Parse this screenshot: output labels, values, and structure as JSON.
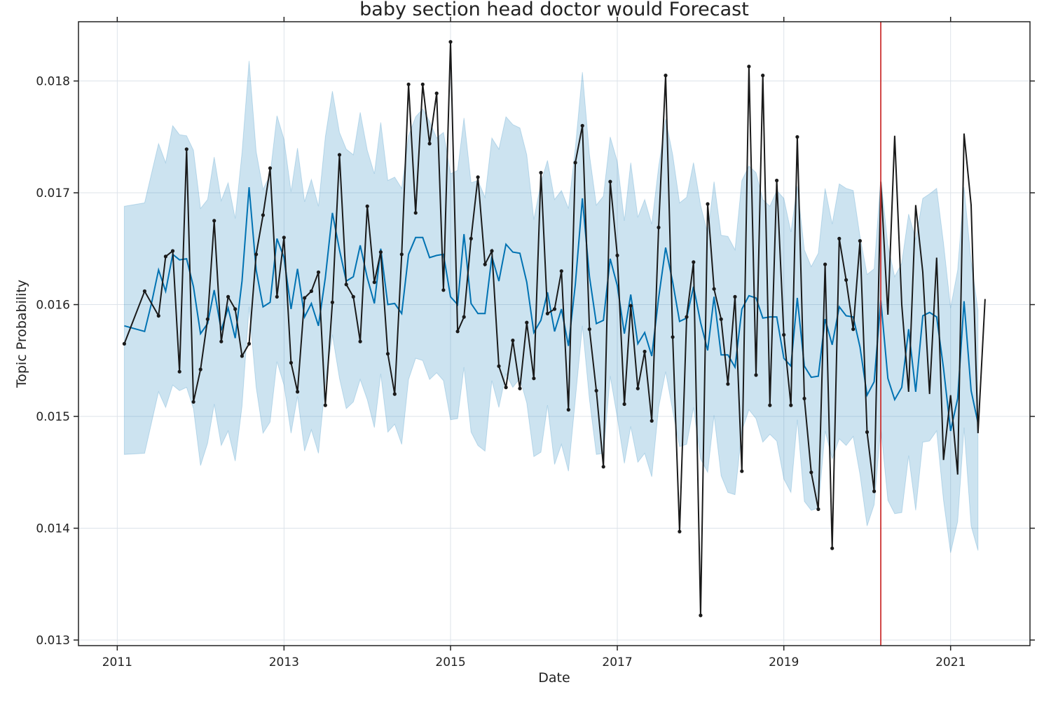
{
  "chart_data": {
    "type": "line",
    "title": "baby section head doctor would Forecast",
    "xlabel": "Date",
    "ylabel": "Topic Probability",
    "xlim": [
      "2010-07-15",
      "2021-12-15"
    ],
    "ylim": [
      0.01295,
      0.01853
    ],
    "x_ticks": [
      {
        "date": "2011-01-01",
        "label": "2011"
      },
      {
        "date": "2013-01-01",
        "label": "2013"
      },
      {
        "date": "2015-01-01",
        "label": "2015"
      },
      {
        "date": "2017-01-01",
        "label": "2017"
      },
      {
        "date": "2019-01-01",
        "label": "2019"
      },
      {
        "date": "2021-01-01",
        "label": "2021"
      }
    ],
    "y_ticks": [
      {
        "value": 0.013,
        "label": "0.013"
      },
      {
        "value": 0.014,
        "label": "0.014"
      },
      {
        "value": 0.015,
        "label": "0.015"
      },
      {
        "value": 0.016,
        "label": "0.016"
      },
      {
        "value": 0.017,
        "label": "0.017"
      },
      {
        "value": 0.018,
        "label": "0.018"
      }
    ],
    "grid": true,
    "changepoint_date": "2020-03-01",
    "colors": {
      "forecast": "#0072b2",
      "interval": "#0072b2",
      "observed": "#1a1a1a",
      "changepoint": "#cc3333",
      "grid": "#dde3ea",
      "frame": "#222222"
    },
    "series": [
      {
        "type": "interval",
        "x": [
          "2011-02-01",
          "2011-05-01",
          "2011-06-01",
          "2011-07-01",
          "2011-08-01",
          "2011-09-01",
          "2011-10-01",
          "2011-11-01",
          "2011-12-01",
          "2012-01-01",
          "2012-02-01",
          "2012-03-01",
          "2012-04-01",
          "2012-05-01",
          "2012-06-01",
          "2012-07-01",
          "2012-08-01",
          "2012-09-01",
          "2012-10-01",
          "2012-11-01",
          "2012-12-01",
          "2013-01-01",
          "2013-02-01",
          "2013-03-01",
          "2013-04-01",
          "2013-05-01",
          "2013-06-01",
          "2013-07-01",
          "2013-08-01",
          "2013-09-01",
          "2013-10-01",
          "2013-11-01",
          "2013-12-01",
          "2014-01-01",
          "2014-02-01",
          "2014-03-01",
          "2014-04-01",
          "2014-05-01",
          "2014-06-01",
          "2014-07-01",
          "2014-08-01",
          "2014-09-01",
          "2014-10-01",
          "2014-11-01",
          "2014-12-01",
          "2015-01-01",
          "2015-02-01",
          "2015-03-01",
          "2015-04-01",
          "2015-05-01",
          "2015-06-01",
          "2015-07-01",
          "2015-08-01",
          "2015-09-01",
          "2015-10-01",
          "2015-11-01",
          "2015-12-01",
          "2016-01-01",
          "2016-02-01",
          "2016-03-01",
          "2016-04-01",
          "2016-05-01",
          "2016-06-01",
          "2016-07-01",
          "2016-08-01",
          "2016-09-01",
          "2016-10-01",
          "2016-11-01",
          "2016-12-01",
          "2017-01-01",
          "2017-02-01",
          "2017-03-01",
          "2017-04-01",
          "2017-05-01",
          "2017-06-01",
          "2017-07-01",
          "2017-08-01",
          "2017-09-01",
          "2017-10-01",
          "2017-11-01",
          "2017-12-01",
          "2018-01-01",
          "2018-02-01",
          "2018-03-01",
          "2018-04-01",
          "2018-05-01",
          "2018-06-01",
          "2018-07-01",
          "2018-08-01",
          "2018-09-01",
          "2018-10-01",
          "2018-11-01",
          "2018-12-01",
          "2019-01-01",
          "2019-02-01",
          "2019-03-01",
          "2019-04-01",
          "2019-05-01",
          "2019-06-01",
          "2019-07-01",
          "2019-08-01",
          "2019-09-01",
          "2019-10-01",
          "2019-11-01",
          "2019-12-01",
          "2020-01-01",
          "2020-02-01",
          "2020-03-01",
          "2020-04-01",
          "2020-05-01",
          "2020-06-01",
          "2020-07-01",
          "2020-08-01",
          "2020-09-01",
          "2020-10-01",
          "2020-11-01",
          "2020-12-01",
          "2021-01-01",
          "2021-02-01",
          "2021-03-01",
          "2021-04-01",
          "2021-05-01"
        ],
        "upper": [
          0.01688,
          0.01691,
          0.01718,
          0.01744,
          0.01727,
          0.0176,
          0.01752,
          0.01751,
          0.01738,
          0.01686,
          0.01694,
          0.01732,
          0.01693,
          0.01709,
          0.01677,
          0.01736,
          0.01818,
          0.01737,
          0.01703,
          0.01716,
          0.01769,
          0.01748,
          0.01701,
          0.0174,
          0.01692,
          0.01712,
          0.01688,
          0.0175,
          0.01791,
          0.01754,
          0.01739,
          0.01734,
          0.01772,
          0.01738,
          0.01717,
          0.01763,
          0.01711,
          0.01714,
          0.01704,
          0.01751,
          0.01768,
          0.01775,
          0.01764,
          0.01749,
          0.01754,
          0.01717,
          0.0172,
          0.01767,
          0.01709,
          0.01711,
          0.01696,
          0.01749,
          0.01739,
          0.01768,
          0.01761,
          0.01758,
          0.01734,
          0.01676,
          0.01709,
          0.01729,
          0.01694,
          0.01702,
          0.01686,
          0.0174,
          0.01808,
          0.01734,
          0.01689,
          0.01697,
          0.0175,
          0.01728,
          0.01675,
          0.01727,
          0.01678,
          0.01694,
          0.01672,
          0.01723,
          0.01766,
          0.01734,
          0.01691,
          0.01696,
          0.01727,
          0.01689,
          0.01663,
          0.0171,
          0.01662,
          0.01661,
          0.01649,
          0.01711,
          0.01724,
          0.01718,
          0.01694,
          0.01688,
          0.01702,
          0.01695,
          0.01665,
          0.01706,
          0.01649,
          0.01634,
          0.01646,
          0.01704,
          0.01672,
          0.01708,
          0.01704,
          0.01702,
          0.01661,
          0.01627,
          0.01632,
          0.01713,
          0.01653,
          0.01625,
          0.01637,
          0.01681,
          0.01658,
          0.01695,
          0.01699,
          0.01704,
          0.01655,
          0.01597,
          0.01631,
          0.01705,
          0.01639,
          0.01595
        ],
        "lower": [
          0.01466,
          0.01467,
          0.01495,
          0.01522,
          0.01508,
          0.01528,
          0.01523,
          0.01526,
          0.01507,
          0.01456,
          0.01476,
          0.01511,
          0.01474,
          0.01487,
          0.0146,
          0.01509,
          0.01598,
          0.01526,
          0.01485,
          0.01495,
          0.01549,
          0.01528,
          0.01485,
          0.01518,
          0.01469,
          0.01488,
          0.01467,
          0.0153,
          0.01573,
          0.01534,
          0.01507,
          0.01513,
          0.01533,
          0.01515,
          0.0149,
          0.01538,
          0.01486,
          0.01493,
          0.01475,
          0.01533,
          0.01552,
          0.0155,
          0.01533,
          0.01539,
          0.01532,
          0.01497,
          0.01498,
          0.01544,
          0.01486,
          0.01474,
          0.01469,
          0.01532,
          0.01508,
          0.01538,
          0.01526,
          0.01534,
          0.01512,
          0.01464,
          0.01468,
          0.0151,
          0.01457,
          0.01475,
          0.01451,
          0.01515,
          0.01581,
          0.01515,
          0.01466,
          0.01467,
          0.01536,
          0.01499,
          0.01458,
          0.01491,
          0.01459,
          0.01467,
          0.01446,
          0.01508,
          0.0154,
          0.01505,
          0.01473,
          0.01475,
          0.01508,
          0.01462,
          0.0145,
          0.01501,
          0.01447,
          0.01432,
          0.0143,
          0.01487,
          0.01506,
          0.01498,
          0.01477,
          0.01484,
          0.01478,
          0.01444,
          0.01432,
          0.01497,
          0.01424,
          0.01416,
          0.01418,
          0.01487,
          0.01462,
          0.0148,
          0.01474,
          0.01482,
          0.01448,
          0.01402,
          0.01421,
          0.0149,
          0.01425,
          0.01413,
          0.01414,
          0.01465,
          0.01416,
          0.01477,
          0.01478,
          0.01487,
          0.01425,
          0.01378,
          0.01406,
          0.0149,
          0.01402,
          0.0138
        ]
      },
      {
        "type": "forecast",
        "x": [
          "2011-02-01",
          "2011-05-01",
          "2011-06-01",
          "2011-07-01",
          "2011-08-01",
          "2011-09-01",
          "2011-10-01",
          "2011-11-01",
          "2011-12-01",
          "2012-01-01",
          "2012-02-01",
          "2012-03-01",
          "2012-04-01",
          "2012-05-01",
          "2012-06-01",
          "2012-07-01",
          "2012-08-01",
          "2012-09-01",
          "2012-10-01",
          "2012-11-01",
          "2012-12-01",
          "2013-01-01",
          "2013-02-01",
          "2013-03-01",
          "2013-04-01",
          "2013-05-01",
          "2013-06-01",
          "2013-07-01",
          "2013-08-01",
          "2013-09-01",
          "2013-10-01",
          "2013-11-01",
          "2013-12-01",
          "2014-01-01",
          "2014-02-01",
          "2014-03-01",
          "2014-04-01",
          "2014-05-01",
          "2014-06-01",
          "2014-07-01",
          "2014-08-01",
          "2014-09-01",
          "2014-10-01",
          "2014-11-01",
          "2014-12-01",
          "2015-01-01",
          "2015-02-01",
          "2015-03-01",
          "2015-04-01",
          "2015-05-01",
          "2015-06-01",
          "2015-07-01",
          "2015-08-01",
          "2015-09-01",
          "2015-10-01",
          "2015-11-01",
          "2015-12-01",
          "2016-01-01",
          "2016-02-01",
          "2016-03-01",
          "2016-04-01",
          "2016-05-01",
          "2016-06-01",
          "2016-07-01",
          "2016-08-01",
          "2016-09-01",
          "2016-10-01",
          "2016-11-01",
          "2016-12-01",
          "2017-01-01",
          "2017-02-01",
          "2017-03-01",
          "2017-04-01",
          "2017-05-01",
          "2017-06-01",
          "2017-07-01",
          "2017-08-01",
          "2017-09-01",
          "2017-10-01",
          "2017-11-01",
          "2017-12-01",
          "2018-01-01",
          "2018-02-01",
          "2018-03-01",
          "2018-04-01",
          "2018-05-01",
          "2018-06-01",
          "2018-07-01",
          "2018-08-01",
          "2018-09-01",
          "2018-10-01",
          "2018-11-01",
          "2018-12-01",
          "2019-01-01",
          "2019-02-01",
          "2019-03-01",
          "2019-04-01",
          "2019-05-01",
          "2019-06-01",
          "2019-07-01",
          "2019-08-01",
          "2019-09-01",
          "2019-10-01",
          "2019-11-01",
          "2019-12-01",
          "2020-01-01",
          "2020-02-01",
          "2020-03-01",
          "2020-04-01",
          "2020-05-01",
          "2020-06-01",
          "2020-07-01",
          "2020-08-01",
          "2020-09-01",
          "2020-10-01",
          "2020-11-01",
          "2020-12-01",
          "2021-01-01",
          "2021-02-01",
          "2021-03-01",
          "2021-04-01",
          "2021-05-01"
        ],
        "y": [
          0.01581,
          0.01576,
          0.01602,
          0.01631,
          0.01612,
          0.01645,
          0.0164,
          0.01641,
          0.01616,
          0.01574,
          0.01583,
          0.01613,
          0.01577,
          0.01597,
          0.0157,
          0.01621,
          0.01705,
          0.01631,
          0.01598,
          0.01602,
          0.01659,
          0.01642,
          0.01596,
          0.01632,
          0.01589,
          0.01601,
          0.01581,
          0.01624,
          0.01682,
          0.01649,
          0.01621,
          0.01625,
          0.01653,
          0.01624,
          0.01601,
          0.0165,
          0.016,
          0.01601,
          0.01592,
          0.01645,
          0.0166,
          0.0166,
          0.01642,
          0.01644,
          0.01645,
          0.01607,
          0.016,
          0.01663,
          0.01601,
          0.01592,
          0.01592,
          0.01643,
          0.01621,
          0.01654,
          0.01647,
          0.01646,
          0.0162,
          0.01575,
          0.01586,
          0.01611,
          0.01576,
          0.01596,
          0.01563,
          0.01618,
          0.01695,
          0.01625,
          0.01583,
          0.01586,
          0.01641,
          0.01617,
          0.01574,
          0.01609,
          0.01565,
          0.01575,
          0.01554,
          0.01606,
          0.01651,
          0.0162,
          0.01585,
          0.01588,
          0.01616,
          0.01584,
          0.01559,
          0.01607,
          0.01555,
          0.01555,
          0.01544,
          0.01596,
          0.01608,
          0.01606,
          0.01588,
          0.01589,
          0.01589,
          0.01552,
          0.01545,
          0.01606,
          0.01545,
          0.01535,
          0.01536,
          0.01587,
          0.01564,
          0.01598,
          0.0159,
          0.01589,
          0.01562,
          0.01519,
          0.01531,
          0.01604,
          0.01534,
          0.01515,
          0.01526,
          0.01578,
          0.01522,
          0.0159,
          0.01593,
          0.01589,
          0.01543,
          0.01487,
          0.01516,
          0.01603,
          0.01523,
          0.01494
        ]
      },
      {
        "type": "observed",
        "x": [
          "2011-02-01",
          "2011-05-01",
          "2011-07-01",
          "2011-08-01",
          "2011-09-01",
          "2011-10-01",
          "2011-11-01",
          "2011-12-01",
          "2012-01-01",
          "2012-02-01",
          "2012-03-01",
          "2012-04-01",
          "2012-05-01",
          "2012-06-01",
          "2012-07-01",
          "2012-08-01",
          "2012-09-01",
          "2012-10-01",
          "2012-11-01",
          "2012-12-01",
          "2013-01-01",
          "2013-02-01",
          "2013-03-01",
          "2013-04-01",
          "2013-05-01",
          "2013-06-01",
          "2013-07-01",
          "2013-08-01",
          "2013-09-01",
          "2013-10-01",
          "2013-11-01",
          "2013-12-01",
          "2014-01-01",
          "2014-02-01",
          "2014-03-01",
          "2014-04-01",
          "2014-05-01",
          "2014-06-01",
          "2014-07-01",
          "2014-08-01",
          "2014-09-01",
          "2014-10-01",
          "2014-11-01",
          "2014-12-01",
          "2015-01-01",
          "2015-02-01",
          "2015-03-01",
          "2015-04-01",
          "2015-05-01",
          "2015-06-01",
          "2015-07-01",
          "2015-08-01",
          "2015-09-01",
          "2015-10-01",
          "2015-11-01",
          "2015-12-01",
          "2016-01-01",
          "2016-02-01",
          "2016-03-01",
          "2016-04-01",
          "2016-05-01",
          "2016-06-01",
          "2016-07-01",
          "2016-08-01",
          "2016-09-01",
          "2016-10-01",
          "2016-11-01",
          "2016-12-01",
          "2017-01-01",
          "2017-02-01",
          "2017-03-01",
          "2017-04-01",
          "2017-05-01",
          "2017-06-01",
          "2017-07-01",
          "2017-08-01",
          "2017-09-01",
          "2017-10-01",
          "2017-11-01",
          "2017-12-01",
          "2018-01-01",
          "2018-02-01",
          "2018-03-01",
          "2018-04-01",
          "2018-05-01",
          "2018-06-01",
          "2018-07-01",
          "2018-08-01",
          "2018-09-01",
          "2018-10-01",
          "2018-11-01",
          "2018-12-01",
          "2019-01-01",
          "2019-02-01",
          "2019-03-01",
          "2019-04-01",
          "2019-05-01",
          "2019-06-01",
          "2019-07-01",
          "2019-08-01",
          "2019-09-01",
          "2019-10-01",
          "2019-11-01",
          "2019-12-01",
          "2020-01-01",
          "2020-02-01",
          "2020-03-01",
          "2020-04-01",
          "2020-05-01",
          "2020-06-01",
          "2020-07-01",
          "2020-08-01",
          "2020-09-01",
          "2020-10-01",
          "2020-11-01",
          "2020-12-01",
          "2021-01-01",
          "2021-02-01",
          "2021-03-01",
          "2021-04-01",
          "2021-05-01",
          "2021-06-01"
        ],
        "y": [
          0.01565,
          0.01612,
          0.0159,
          0.01643,
          0.01648,
          0.0154,
          0.01739,
          0.01513,
          0.01542,
          0.01587,
          0.01675,
          0.01567,
          0.01607,
          0.01596,
          0.01554,
          0.01565,
          0.01645,
          0.0168,
          0.01722,
          0.01607,
          0.0166,
          0.01548,
          0.01522,
          0.01606,
          0.01612,
          0.01629,
          0.0151,
          0.01602,
          0.01734,
          0.01618,
          0.01607,
          0.01567,
          0.01688,
          0.0162,
          0.01647,
          0.01556,
          0.0152,
          0.01645,
          0.01797,
          0.01682,
          0.01797,
          0.01744,
          0.01789,
          0.01613,
          0.01835,
          0.01576,
          0.01589,
          0.01659,
          0.01714,
          0.01636,
          0.01648,
          0.01545,
          0.01526,
          0.01568,
          0.01525,
          0.01584,
          0.01534,
          0.01718,
          0.01592,
          0.01596,
          0.0163,
          0.01506,
          0.01727,
          0.0176,
          0.01578,
          0.01523,
          0.01455,
          0.0171,
          0.01644,
          0.01511,
          0.01599,
          0.01525,
          0.01558,
          0.01496,
          0.01669,
          0.01805,
          0.01571,
          0.01397,
          0.01589,
          0.01638,
          0.01322,
          0.0169,
          0.01614,
          0.01587,
          0.01529,
          0.01607,
          0.01451,
          0.01813,
          0.01537,
          0.01805,
          0.0151,
          0.01711,
          0.01573,
          0.0151,
          0.0175,
          0.01516,
          0.0145,
          0.01417,
          0.01636,
          0.01382,
          0.01659,
          0.01622,
          0.01578,
          0.01657,
          0.01486,
          0.01433,
          0.0171,
          0.01591,
          0.01751,
          0.016,
          0.01522,
          0.01689,
          0.01629,
          0.0152,
          0.01642,
          0.01461,
          0.01519,
          0.01448,
          0.01753,
          0.01689,
          0.01485,
          0.01605
        ]
      }
    ]
  }
}
